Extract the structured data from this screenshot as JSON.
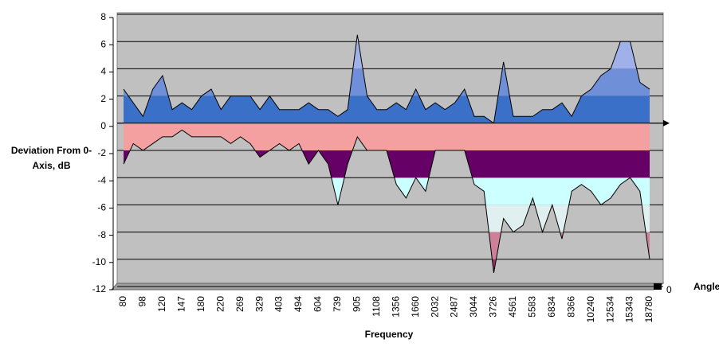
{
  "chart_data": {
    "type": "surface",
    "ylabel": "Deviation From 0-Axis, dB",
    "xlabel": "Frequency",
    "zlabel": "Angle",
    "zticks": [
      0
    ],
    "categories": [
      "80",
      null,
      "98",
      null,
      "120",
      null,
      "147",
      null,
      "180",
      null,
      "220",
      null,
      "269",
      null,
      "329",
      null,
      "403",
      null,
      "494",
      null,
      "604",
      null,
      "739",
      null,
      "905",
      null,
      "1108",
      null,
      "1356",
      null,
      "1660",
      null,
      "2032",
      null,
      "2487",
      null,
      "3044",
      null,
      "3726",
      null,
      "4561",
      null,
      "5583",
      null,
      "6834",
      null,
      "8366",
      null,
      "10240",
      null,
      "12534",
      null,
      "15343",
      null,
      "18780"
    ],
    "series": [
      {
        "values": [
          2.5,
          1.5,
          0.5,
          2.5,
          3.5,
          1,
          1.5,
          1,
          2,
          2.5,
          1,
          2,
          2,
          2,
          1,
          2,
          1,
          1,
          1,
          1.5,
          1,
          1,
          0.5,
          1,
          6.5,
          2,
          1,
          1,
          1.5,
          1,
          2.5,
          1,
          1.5,
          1,
          1.5,
          2.5,
          0.5,
          0.5,
          0,
          4.5,
          0.5,
          0.5,
          0.5,
          1,
          1,
          1.5,
          0.5,
          2,
          2.5,
          3.5,
          4,
          6,
          6,
          3,
          2.5
        ]
      },
      {
        "values": [
          -3,
          -1.5,
          -2,
          -1.5,
          -1,
          -1,
          -0.5,
          -1,
          -1,
          -1,
          -1,
          -1.5,
          -1,
          -1.5,
          -2.5,
          -2,
          -1.5,
          -2,
          -1.5,
          -3,
          -2,
          -3,
          -6,
          -3,
          -1,
          -2,
          -2,
          -2,
          -4.5,
          -5.5,
          -4,
          -5,
          -2,
          -2,
          -2,
          -2,
          -4.5,
          -5,
          -11,
          -7,
          -8,
          -7.5,
          -5.5,
          -8,
          -6,
          -8.5,
          -5,
          -4.5,
          -5,
          -6,
          -5.5,
          -4.5,
          -4,
          -5,
          -10
        ]
      }
    ],
    "band_colors": [
      "#993366",
      "#cc8099",
      "#e0f0f0",
      "#ccffff",
      "#660066",
      "#f4a0a0",
      "#3a70c8",
      "#6f8fd8",
      "#a0b0e8",
      "#d0d8f8"
    ],
    "ylim": [
      -12,
      8
    ],
    "yticks": [
      -12,
      -10,
      -8,
      -6,
      -4,
      -2,
      0,
      2,
      4,
      6,
      8
    ],
    "grid": true
  }
}
